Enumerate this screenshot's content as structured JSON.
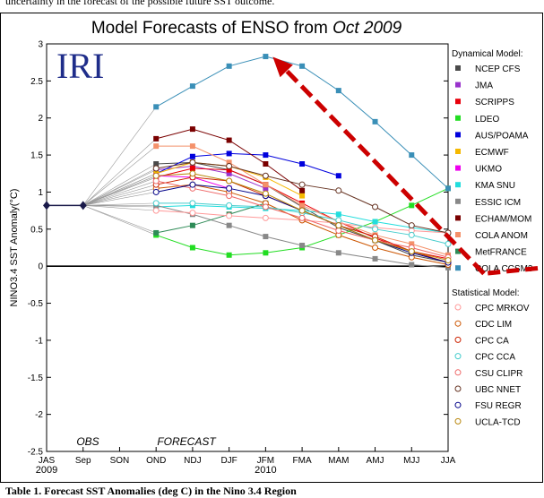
{
  "page": {
    "top_text": "uncertainty in the forecast of the possible future SST outcome.",
    "bottom_text": "Table 1. Forecast SST Anomalies (deg C) in the Nino 3.4 Region"
  },
  "chart_data": {
    "type": "line",
    "title_prefix": "Model Forecasts of ENSO from ",
    "title_italic": "Oct 2009",
    "logo": "IRI",
    "ylabel": "NINO3.4 SST Anomaly(°C)",
    "ylim": [
      -2.5,
      3
    ],
    "yticks": [
      "-2.5",
      "-2",
      "-1.5",
      "-1",
      "-0.5",
      "0",
      "0.5",
      "1",
      "1.5",
      "2",
      "2.5",
      "3"
    ],
    "categories": [
      "JAS",
      "Sep",
      "SON",
      "OND",
      "NDJ",
      "DJF",
      "JFM",
      "FMA",
      "MAM",
      "AMJ",
      "MJJ",
      "JJA"
    ],
    "year_labels": [
      {
        "category": "JAS",
        "text": "2009"
      },
      {
        "category": "JFM",
        "text": "2010"
      }
    ],
    "annotations": {
      "obs": "OBS",
      "forecast": "FORECAST"
    },
    "grid": false,
    "legend_placement": "right",
    "observed": {
      "x": [
        "JAS",
        "Sep"
      ],
      "values": [
        0.82,
        0.82
      ],
      "color": "#1a1a4a"
    },
    "legend_groups": [
      {
        "title": "Dynamical Model:",
        "items": [
          "NCEP CFS",
          "JMA",
          "SCRIPPS",
          "LDEO",
          "AUS/POAMA",
          "ECMWF",
          "UKMO",
          "KMA SNU",
          "ESSIC ICM",
          "ECHAM/MOM",
          "COLA ANOM",
          "MetFRANCE",
          "COLA CCSM3"
        ]
      },
      {
        "title": "Statistical Model:",
        "items": [
          "CPC MRKOV",
          "CDC LIM",
          "CPC CA",
          "CPC CCA",
          "CSU CLIPR",
          "UBC NNET",
          "FSU REGR",
          "UCLA-TCD"
        ]
      }
    ],
    "series": [
      {
        "name": "NCEP CFS",
        "color": "#4a4a4a",
        "marker": "square",
        "x": [
          "OND",
          "NDJ",
          "DJF",
          "JFM",
          "FMA",
          "MAM",
          "AMJ",
          "MJJ",
          "JJA"
        ],
        "values": [
          1.38,
          1.4,
          1.3,
          1.1,
          0.8,
          0.52,
          0.35,
          0.15,
          0.05
        ]
      },
      {
        "name": "JMA",
        "color": "#9933cc",
        "marker": "square",
        "x": [
          "OND",
          "NDJ",
          "DJF",
          "JFM"
        ],
        "values": [
          1.3,
          1.35,
          1.25,
          1.05
        ]
      },
      {
        "name": "SCRIPPS",
        "color": "#e8000b",
        "marker": "square",
        "x": [
          "OND",
          "NDJ",
          "DJF",
          "JFM",
          "FMA",
          "MAM",
          "AMJ",
          "MJJ",
          "JJA"
        ],
        "values": [
          1.2,
          1.32,
          1.3,
          1.1,
          0.85,
          0.6,
          0.38,
          0.2,
          0.1
        ]
      },
      {
        "name": "LDEO",
        "color": "#22dd22",
        "marker": "square",
        "x": [
          "OND",
          "NDJ",
          "DJF",
          "JFM",
          "FMA",
          "MAM",
          "AMJ",
          "MJJ",
          "JJA"
        ],
        "values": [
          0.42,
          0.25,
          0.15,
          0.18,
          0.25,
          0.42,
          0.6,
          0.82,
          1.05
        ]
      },
      {
        "name": "AUS/POAMA",
        "color": "#0000dd",
        "marker": "square",
        "x": [
          "OND",
          "NDJ",
          "DJF",
          "JFM",
          "FMA",
          "MAM"
        ],
        "values": [
          1.25,
          1.48,
          1.52,
          1.5,
          1.38,
          1.22
        ]
      },
      {
        "name": "ECMWF",
        "color": "#f5b800",
        "marker": "square",
        "x": [
          "OND",
          "NDJ",
          "DJF",
          "JFM",
          "FMA"
        ],
        "values": [
          1.25,
          1.4,
          1.35,
          1.2,
          0.95
        ]
      },
      {
        "name": "UKMO",
        "color": "#ee00ee",
        "marker": "square",
        "x": [
          "OND",
          "NDJ",
          "DJF"
        ],
        "values": [
          1.22,
          1.2,
          1.05
        ]
      },
      {
        "name": "KMA SNU",
        "color": "#22dddd",
        "marker": "square",
        "x": [
          "OND",
          "NDJ",
          "DJF",
          "JFM",
          "FMA",
          "MAM",
          "AMJ",
          "MJJ",
          "JJA"
        ],
        "values": [
          0.8,
          0.82,
          0.8,
          0.78,
          0.75,
          0.7,
          0.6,
          0.52,
          0.45
        ]
      },
      {
        "name": "ESSIC ICM",
        "color": "#888888",
        "marker": "square",
        "x": [
          "OND",
          "NDJ",
          "DJF",
          "JFM",
          "FMA",
          "MAM",
          "AMJ",
          "MJJ",
          "JJA"
        ],
        "values": [
          0.82,
          0.7,
          0.55,
          0.4,
          0.28,
          0.18,
          0.1,
          0.02,
          -0.02
        ]
      },
      {
        "name": "ECHAM/MOM",
        "color": "#7a0000",
        "marker": "square",
        "x": [
          "OND",
          "NDJ",
          "DJF",
          "JFM",
          "FMA"
        ],
        "values": [
          1.72,
          1.85,
          1.7,
          1.38,
          1.02
        ]
      },
      {
        "name": "COLA ANOM",
        "color": "#f4916a",
        "marker": "square",
        "x": [
          "OND",
          "NDJ",
          "DJF",
          "JFM",
          "FMA",
          "MAM",
          "AMJ",
          "MJJ",
          "JJA"
        ],
        "values": [
          1.62,
          1.62,
          1.4,
          1.1,
          0.82,
          0.6,
          0.42,
          0.3,
          0.15
        ]
      },
      {
        "name": "MetFRANCE",
        "color": "#2e8b57",
        "marker": "square",
        "x": [
          "OND",
          "NDJ",
          "DJF",
          "JFM"
        ],
        "values": [
          0.45,
          0.55,
          0.7,
          0.85
        ]
      },
      {
        "name": "COLA CCSM3",
        "color": "#3a8fb7",
        "marker": "square",
        "x": [
          "OND",
          "NDJ",
          "DJF",
          "JFM",
          "FMA",
          "MAM",
          "AMJ",
          "MJJ",
          "JJA"
        ],
        "values": [
          2.15,
          2.43,
          2.7,
          2.83,
          2.7,
          2.37,
          1.95,
          1.5,
          1.05
        ]
      },
      {
        "name": "CPC MRKOV",
        "color": "#ff9999",
        "marker": "circle",
        "x": [
          "OND",
          "NDJ",
          "DJF",
          "JFM",
          "FMA",
          "MAM",
          "AMJ",
          "MJJ",
          "JJA"
        ],
        "values": [
          0.75,
          0.72,
          0.68,
          0.65,
          0.62,
          0.58,
          0.52,
          0.48,
          0.45
        ]
      },
      {
        "name": "CDC LIM",
        "color": "#cc5500",
        "marker": "circle",
        "x": [
          "OND",
          "NDJ",
          "DJF",
          "JFM",
          "FMA",
          "MAM",
          "AMJ",
          "MJJ",
          "JJA"
        ],
        "values": [
          1.05,
          1.1,
          1.0,
          0.85,
          0.62,
          0.42,
          0.25,
          0.12,
          0.02
        ]
      },
      {
        "name": "CPC CA",
        "color": "#cc2200",
        "marker": "circle",
        "x": [
          "OND",
          "NDJ",
          "DJF",
          "JFM",
          "FMA",
          "MAM",
          "AMJ",
          "MJJ",
          "JJA"
        ],
        "values": [
          1.1,
          1.2,
          1.15,
          0.95,
          0.75,
          0.55,
          0.4,
          0.2,
          0.05
        ]
      },
      {
        "name": "CPC CCA",
        "color": "#44cccc",
        "marker": "circle",
        "x": [
          "OND",
          "NDJ",
          "DJF",
          "JFM",
          "FMA",
          "MAM",
          "AMJ",
          "MJJ",
          "JJA"
        ],
        "values": [
          0.85,
          0.85,
          0.82,
          0.8,
          0.72,
          0.62,
          0.5,
          0.42,
          0.3
        ]
      },
      {
        "name": "CSU CLIPR",
        "color": "#ee6666",
        "marker": "circle",
        "x": [
          "OND",
          "NDJ",
          "DJF",
          "JFM",
          "FMA",
          "MAM",
          "AMJ",
          "MJJ",
          "JJA"
        ],
        "values": [
          1.15,
          1.05,
          0.95,
          0.8,
          0.65,
          0.48,
          0.35,
          0.25,
          0.12
        ]
      },
      {
        "name": "UBC NNET",
        "color": "#663322",
        "marker": "circle",
        "x": [
          "OND",
          "NDJ",
          "DJF",
          "JFM",
          "FMA",
          "MAM",
          "AMJ",
          "MJJ",
          "JJA"
        ],
        "values": [
          1.32,
          1.4,
          1.35,
          1.22,
          1.1,
          1.02,
          0.8,
          0.55,
          0.45
        ]
      },
      {
        "name": "FSU REGR",
        "color": "#000088",
        "marker": "circle",
        "x": [
          "OND",
          "NDJ",
          "DJF",
          "JFM",
          "FMA",
          "MAM",
          "AMJ",
          "MJJ",
          "JJA"
        ],
        "values": [
          1.0,
          1.1,
          1.05,
          0.95,
          0.75,
          0.55,
          0.35,
          0.18,
          0.05
        ]
      },
      {
        "name": "UCLA-TCD",
        "color": "#b8860b",
        "marker": "circle",
        "x": [
          "OND",
          "NDJ",
          "DJF",
          "JFM",
          "FMA",
          "MAM",
          "AMJ",
          "MJJ",
          "JJA"
        ],
        "values": [
          1.22,
          1.25,
          1.15,
          0.98,
          0.75,
          0.55,
          0.35,
          0.2,
          0.08
        ]
      }
    ],
    "highlight_arrow": {
      "color": "#cc0000",
      "from_category": "JJA",
      "from_value": -0.1,
      "to_category": "JFM",
      "to_value": 2.8
    }
  }
}
